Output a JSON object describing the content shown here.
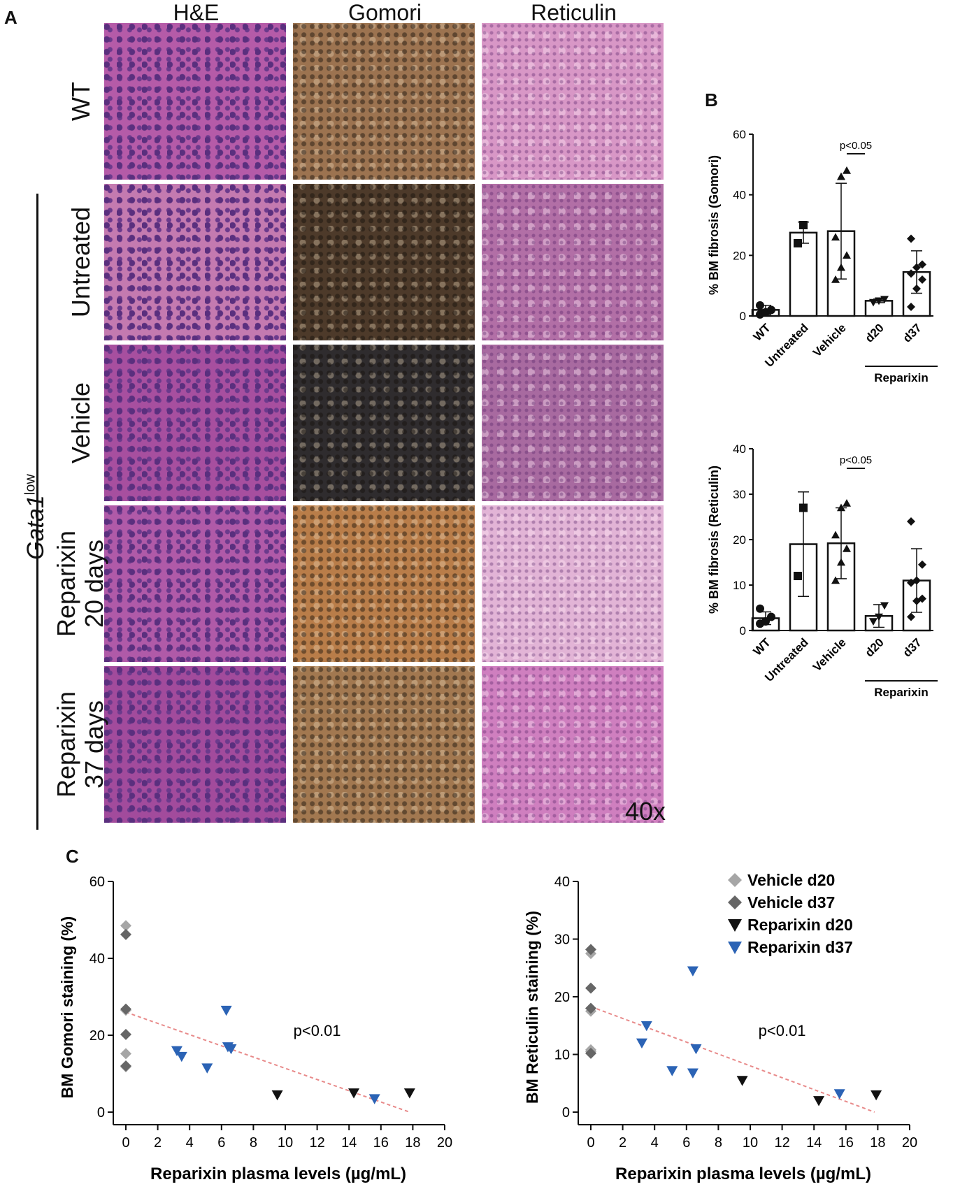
{
  "panelA": {
    "letter": "A",
    "columns": [
      "H&E",
      "Gomori",
      "Reticulin"
    ],
    "rows": [
      "WT",
      "Untreated",
      "Vehicle",
      "Reparixin\n20 days",
      "Reparixin\n37 days"
    ],
    "group_label": "Gata1",
    "group_label_sup": "low",
    "magnification": "40x",
    "tile_colors": {
      "he": [
        "#b55ba8",
        "#c47ab0",
        "#a74f9f",
        "#b05aa8",
        "#a24b9c"
      ],
      "gomori": [
        "#9c7350",
        "#4d3a2a",
        "#2f2c2e",
        "#b97d49",
        "#a27850"
      ],
      "reticulin": [
        "#d897c6",
        "#b26fa6",
        "#a86aa0",
        "#e2b4d6",
        "#cf7fbf"
      ]
    }
  },
  "panelB": {
    "letter": "B"
  },
  "panelC": {
    "letter": "C"
  },
  "chart_data": [
    {
      "type": "bar",
      "ylabel": "% BM fibrosis (Gomori)",
      "categories": [
        "WT",
        "Untreated",
        "Vehicle",
        "d20",
        "d37"
      ],
      "group_label": "Reparixin",
      "values": [
        2,
        27.5,
        28,
        5,
        14.5
      ],
      "errors": [
        1.5,
        3.5,
        15.8,
        0.6,
        7
      ],
      "ylim": [
        0,
        60
      ],
      "yticks": [
        "0",
        "20",
        "40",
        "60"
      ],
      "significance": "p<0.05",
      "points": {
        "WT": [
          0.5,
          1.2,
          2,
          3.5
        ],
        "Untreated": [
          24,
          30
        ],
        "Vehicle": [
          12,
          16,
          20,
          26,
          46,
          48
        ],
        "d20": [
          4.5,
          5,
          5.5
        ],
        "d37": [
          3,
          9,
          12,
          14,
          16,
          17,
          25.5
        ]
      },
      "markers": [
        "circle",
        "square",
        "triangle",
        "triangle-down",
        "diamond"
      ]
    },
    {
      "type": "bar",
      "ylabel": "% BM fibrosis (Reticulin)",
      "categories": [
        "WT",
        "Untreated",
        "Vehicle",
        "d20",
        "d37"
      ],
      "group_label": "Reparixin",
      "values": [
        2.7,
        19,
        19.2,
        3.2,
        11
      ],
      "errors": [
        1.4,
        11.5,
        7.8,
        2.5,
        7
      ],
      "ylim": [
        0,
        40
      ],
      "yticks": [
        "0",
        "10",
        "20",
        "30",
        "40"
      ],
      "significance": "p<0.05",
      "points": {
        "WT": [
          1.5,
          2,
          3,
          4.8
        ],
        "Untreated": [
          12,
          27
        ],
        "Vehicle": [
          11,
          15,
          18,
          21,
          27,
          28
        ],
        "d20": [
          2,
          3,
          5.5
        ],
        "d37": [
          3,
          6.5,
          7,
          10.5,
          11,
          14.5,
          24
        ]
      },
      "markers": [
        "circle",
        "square",
        "triangle",
        "triangle-down",
        "diamond"
      ]
    },
    {
      "type": "scatter",
      "xlabel": "Reparixin plasma levels (µg/mL)",
      "ylabel": "BM Gomori staining (%)",
      "xlim": [
        0,
        20
      ],
      "ylim": [
        0,
        60
      ],
      "xticks": [
        "0",
        "2",
        "4",
        "6",
        "8",
        "10",
        "12",
        "14",
        "16",
        "18",
        "20"
      ],
      "yticks": [
        "0",
        "20",
        "40",
        "60"
      ],
      "annotation": "p<0.01",
      "series": [
        {
          "name": "Vehicle d20",
          "color": "#a6a6a6",
          "marker": "diamond",
          "x": [
            0,
            0,
            0,
            0
          ],
          "y": [
            48.5,
            26.5,
            15.2,
            11.8
          ]
        },
        {
          "name": "Vehicle d37",
          "color": "#666666",
          "marker": "diamond",
          "x": [
            0,
            0,
            0,
            0
          ],
          "y": [
            46.2,
            26.8,
            20.2,
            12
          ]
        },
        {
          "name": "Reparixin d20",
          "color": "#111111",
          "marker": "triangle-down",
          "x": [
            9.5,
            14.3,
            17.8
          ],
          "y": [
            4.5,
            5,
            5
          ]
        },
        {
          "name": "Reparixin d37",
          "color": "#2b63b5",
          "marker": "triangle-down",
          "x": [
            3.2,
            3.5,
            5.1,
            6.3,
            6.4,
            6.6,
            15.6
          ],
          "y": [
            16,
            14.5,
            11.5,
            26.5,
            17,
            16.5,
            3.5
          ]
        }
      ],
      "fit": {
        "color": "#e88a8a",
        "x": [
          0,
          17.8
        ],
        "y": [
          26,
          0
        ]
      }
    },
    {
      "type": "scatter",
      "xlabel": "Reparixin plasma levels (µg/mL)",
      "ylabel": "BM Reticulin staining (%)",
      "xlim": [
        0,
        20
      ],
      "ylim": [
        0,
        40
      ],
      "xticks": [
        "0",
        "2",
        "4",
        "6",
        "8",
        "10",
        "12",
        "14",
        "16",
        "18",
        "20"
      ],
      "yticks": [
        "0",
        "10",
        "20",
        "30",
        "40"
      ],
      "annotation": "p<0.01",
      "legend_position": "top-right",
      "series": [
        {
          "name": "Vehicle d20",
          "color": "#a6a6a6",
          "marker": "diamond",
          "x": [
            0,
            0,
            0,
            0
          ],
          "y": [
            27.5,
            17.5,
            10.5,
            10.8
          ]
        },
        {
          "name": "Vehicle d37",
          "color": "#666666",
          "marker": "diamond",
          "x": [
            0,
            0,
            0,
            0
          ],
          "y": [
            28.2,
            21.5,
            18,
            10.2
          ]
        },
        {
          "name": "Reparixin d20",
          "color": "#111111",
          "marker": "triangle-down",
          "x": [
            9.5,
            14.3,
            17.9
          ],
          "y": [
            5.5,
            2,
            3
          ]
        },
        {
          "name": "Reparixin d37",
          "color": "#2b63b5",
          "marker": "triangle-down",
          "x": [
            3.2,
            3.5,
            5.1,
            6.4,
            6.4,
            6.6,
            15.6
          ],
          "y": [
            12,
            15,
            7.2,
            24.5,
            6.8,
            11,
            3.2
          ]
        }
      ],
      "fit": {
        "color": "#e88a8a",
        "x": [
          0,
          17.8
        ],
        "y": [
          18.3,
          0
        ]
      }
    }
  ]
}
